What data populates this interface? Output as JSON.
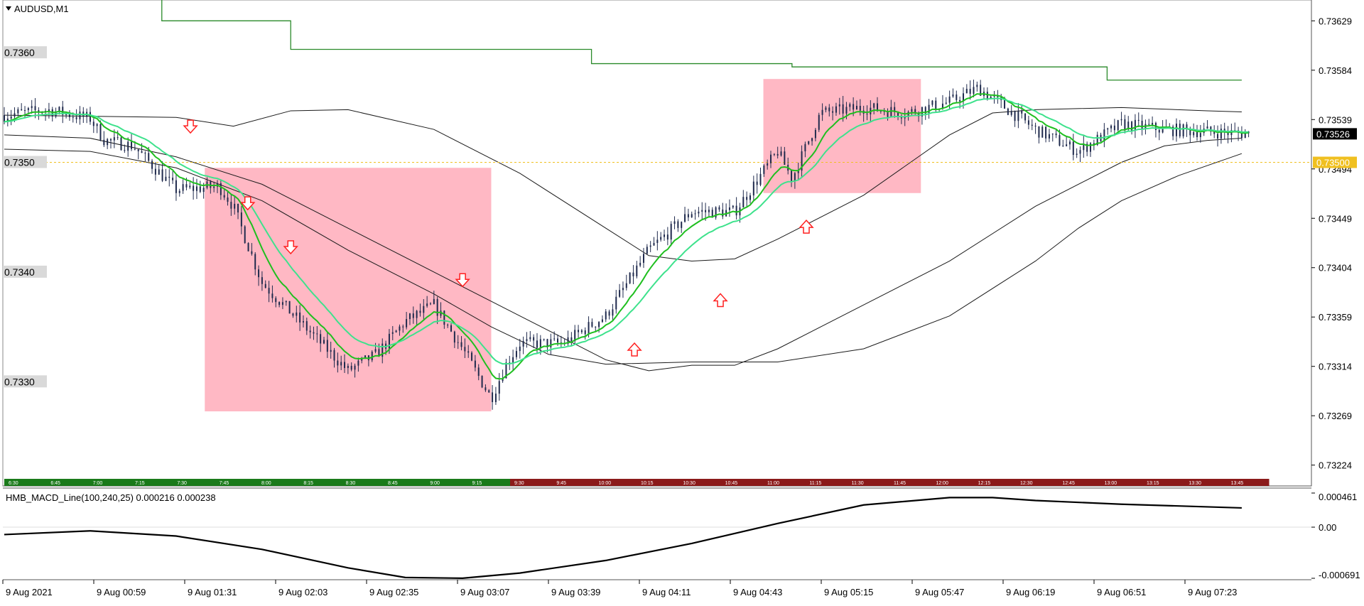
{
  "window": {
    "symbol_label": "AUDUSD,M1"
  },
  "indicator": {
    "label": "HMB_MACD_Line(100,240,25) 0.000216 0.000238",
    "axis_labels": [
      "0.000461",
      "0.00",
      "-0.000691"
    ]
  },
  "price_axis": {
    "ticks": [
      "0.73629",
      "0.73584",
      "0.73539",
      "0.73494",
      "0.73449",
      "0.73404",
      "0.73359",
      "0.73314",
      "0.73269",
      "0.73224"
    ],
    "current_price": "0.73526",
    "hline_price": "0.73500"
  },
  "level_labels": [
    "0.7360",
    "0.7350",
    "0.7340",
    "0.7330"
  ],
  "time_axis": [
    "9 Aug 2021",
    "9 Aug 00:59",
    "9 Aug 01:31",
    "9 Aug 02:03",
    "9 Aug 02:35",
    "9 Aug 03:07",
    "9 Aug 03:39",
    "9 Aug 04:11",
    "9 Aug 04:43",
    "9 Aug 05:15",
    "9 Aug 05:47",
    "9 Aug 06:19",
    "9 Aug 06:51",
    "9 Aug 07:23"
  ],
  "session_bar": [
    "6:30",
    "6:45",
    "7:00",
    "7:15",
    "7:30",
    "7:45",
    "8:00",
    "8:15",
    "8:30",
    "8:45",
    "9:00",
    "9:15",
    "9:30",
    "9:45",
    "10:00",
    "10:15",
    "10:30",
    "10:45",
    "11:00",
    "11:15",
    "11:30",
    "11:45",
    "12:00",
    "12:15",
    "12:30",
    "12:45",
    "13:00",
    "13:15",
    "13:30",
    "13:45"
  ],
  "colors": {
    "candle": "#1f2a4d",
    "ema_green": "#1fbf1f",
    "ema_mint": "#3ee28c",
    "band": "#1a1a1a",
    "level_line": "#2a8a2a",
    "zone": "#ffb8c4",
    "arrow": "#ff2020",
    "session_green": "#1a7a1a",
    "session_red": "#8b1a1a",
    "hline": "#f0c020"
  },
  "chart_data": {
    "type": "line",
    "symbol": "AUDUSD",
    "timeframe": "M1",
    "x_start": "6:30",
    "x_end": "13:45",
    "ylim": [
      0.73205,
      0.73648
    ],
    "price_path_anchors": [
      [
        "6:30",
        0.73543
      ],
      [
        "6:45",
        0.73548
      ],
      [
        "7:00",
        0.7354
      ],
      [
        "7:05",
        0.7352
      ],
      [
        "7:15",
        0.73515
      ],
      [
        "7:30",
        0.73475
      ],
      [
        "7:45",
        0.73478
      ],
      [
        "7:50",
        0.7346
      ],
      [
        "8:00",
        0.7339
      ],
      [
        "8:15",
        0.7335
      ],
      [
        "8:30",
        0.7331
      ],
      [
        "8:40",
        0.73325
      ],
      [
        "8:50",
        0.73355
      ],
      [
        "9:00",
        0.7337
      ],
      [
        "9:10",
        0.7333
      ],
      [
        "9:20",
        0.73285
      ],
      [
        "9:25",
        0.73315
      ],
      [
        "9:30",
        0.73335
      ],
      [
        "9:45",
        0.73335
      ],
      [
        "10:00",
        0.7336
      ],
      [
        "10:15",
        0.7342
      ],
      [
        "10:30",
        0.73455
      ],
      [
        "10:45",
        0.73455
      ],
      [
        "11:00",
        0.7351
      ],
      [
        "11:05",
        0.73485
      ],
      [
        "11:15",
        0.73545
      ],
      [
        "11:30",
        0.7355
      ],
      [
        "11:45",
        0.73545
      ],
      [
        "12:00",
        0.73555
      ],
      [
        "12:10",
        0.73568
      ],
      [
        "12:30",
        0.7353
      ],
      [
        "12:45",
        0.7351
      ],
      [
        "13:00",
        0.73535
      ],
      [
        "13:15",
        0.7353
      ],
      [
        "13:30",
        0.73528
      ],
      [
        "13:45",
        0.73526
      ]
    ],
    "current_price": 0.73526,
    "horizontal_line": 0.735,
    "macd_series": {
      "name": "HMB_MACD_Line(100,240,25)",
      "values_shown": [
        0.000216,
        0.000238
      ],
      "axis_range": [
        -0.000691,
        0.000461
      ]
    }
  }
}
